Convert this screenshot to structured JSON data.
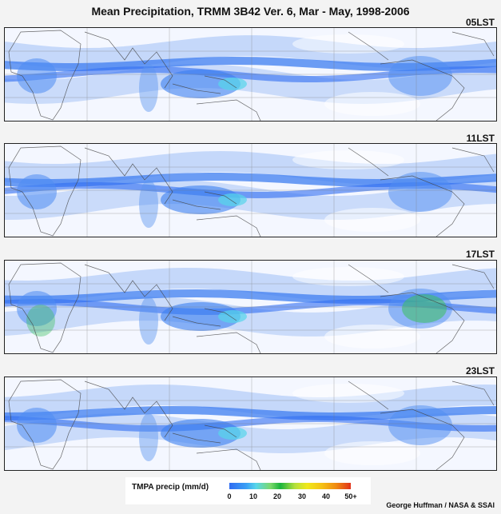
{
  "title": "Mean Precipitation, TRMM 3B42 Ver. 6, Mar - May, 1998-2006",
  "panels": [
    {
      "label": "05LST"
    },
    {
      "label": "11LST"
    },
    {
      "label": "17LST"
    },
    {
      "label": "23LST"
    }
  ],
  "legend": {
    "label": "TMPA precip (mm/d)",
    "ticks": [
      "0",
      "10",
      "20",
      "30",
      "40",
      "50+"
    ],
    "colors": [
      "#2f6cf2",
      "#3aa0f5",
      "#57d6ea",
      "#1ab43c",
      "#f0e81a",
      "#f08a10",
      "#e1321a"
    ]
  },
  "credit": "George Huffman / NASA & SSAI"
}
